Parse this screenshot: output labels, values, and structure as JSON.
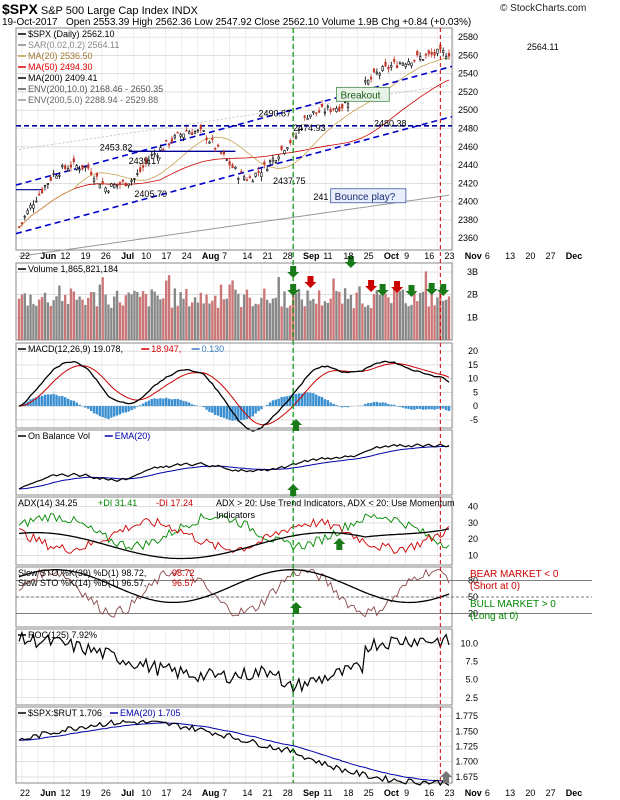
{
  "header": {
    "symbol": "$SPX",
    "name": "S&P 500 Large Cap Index",
    "exchange": "INDX",
    "source": "© StockCharts.com",
    "date": "19-Oct-2017",
    "ohlc": "Open 2553.39  High 2562.36  Low 2547.92  Close 2562.10  Volume 1.9B  Chg +0.84 (+0.03%)"
  },
  "chart_data": [
    {
      "type": "line",
      "panel": "price",
      "legend": [
        {
          "label": "$SPX (Daily) 2562.10",
          "color": "#000000"
        },
        {
          "label": "SAR(0.02,0.2) 2564.11",
          "color": "#888888"
        },
        {
          "label": "MA(20) 2536.50",
          "color": "#c8a050"
        },
        {
          "label": "MA(50) 2494.30",
          "color": "#dd0000"
        },
        {
          "label": "MA(200) 2409.41",
          "color": "#000000"
        },
        {
          "label": "ENV(200,10.0) 2168.46 - 2650.35",
          "color": "#555555"
        },
        {
          "label": "ENV(200,5.0) 2288.94 - 2529.88",
          "color": "#999999"
        }
      ],
      "yticks": [
        2360,
        2380,
        2400,
        2420,
        2440,
        2460,
        2480,
        2500,
        2520,
        2540,
        2560,
        2580
      ],
      "ylim": [
        2347,
        2590
      ],
      "annotations": [
        {
          "text": "2564.11",
          "x": 176,
          "y": 2566
        },
        {
          "text": "2490.87",
          "x": 83,
          "y": 2493
        },
        {
          "text": "2474.93",
          "x": 95,
          "y": 2477
        },
        {
          "text": "2480.38",
          "x": 123,
          "y": 2482
        },
        {
          "text": "2453.82",
          "x": 28,
          "y": 2456
        },
        {
          "text": "2439.17",
          "x": 38,
          "y": 2441
        },
        {
          "text": "2437.75",
          "x": 88,
          "y": 2419
        },
        {
          "text": "241",
          "x": 102,
          "y": 2402
        },
        {
          "text": "2405.70",
          "x": 40,
          "y": 2405
        },
        {
          "text": "Breakout",
          "x": 110,
          "y": 2513,
          "box": "green"
        },
        {
          "text": "Bounce play?",
          "x": 108,
          "y": 2402,
          "box": "blue"
        }
      ]
    },
    {
      "type": "bar",
      "panel": "volume",
      "legend": [
        {
          "label": "Volume 1,865,821,184",
          "color": "#000000"
        }
      ],
      "yticks": [
        1,
        2,
        3
      ],
      "ytick_labels": [
        "1B",
        "2B",
        "3B"
      ],
      "ylim": [
        0,
        3.4
      ]
    },
    {
      "type": "line",
      "panel": "macd",
      "legend": [
        {
          "label": "MACD(12,26,9) 19.078,",
          "color": "#000000"
        },
        {
          "label": "18.947,",
          "color": "#dd0000"
        },
        {
          "label": "0.130",
          "color": "#3a7fc0"
        }
      ],
      "yticks": [
        -5,
        0,
        5,
        10,
        15,
        20
      ],
      "ylim": [
        -8,
        23
      ]
    },
    {
      "type": "line",
      "panel": "obv",
      "legend": [
        {
          "label": "On Balance Vol",
          "color": "#000000"
        },
        {
          "label": "EMA(20)",
          "color": "#0000aa"
        }
      ]
    },
    {
      "type": "line",
      "panel": "adx",
      "legend": [
        {
          "label": "ADX(14) 34.25",
          "color": "#000000"
        },
        {
          "label": "+DI 31.41",
          "color": "#008800"
        },
        {
          "label": "-DI 17.24",
          "color": "#cc0000"
        },
        {
          "label": "ADX > 20: Use Trend Indicators, ADX < 20: Use Momentum",
          "color": "#000000"
        },
        {
          "label": "Indicators",
          "color": "#000000"
        }
      ],
      "yticks": [
        10,
        20,
        30,
        40
      ],
      "ylim": [
        4,
        46
      ]
    },
    {
      "type": "line",
      "panel": "sto",
      "legend": [
        {
          "label": "Slow STO %K(39) %D(1) 98.72,",
          "color": "#000000"
        },
        {
          "label": "98.72",
          "color": "#cc0000"
        },
        {
          "label": "Slow STO %K(14) %D(1) 96.57,",
          "color": "#000000"
        },
        {
          "label": "96.57",
          "color": "#cc0000"
        }
      ],
      "notes": [
        {
          "text": "BEAR MARKET < 0",
          "color": "#cc0000"
        },
        {
          "text": "(Short at 0)",
          "color": "#cc0000"
        },
        {
          "text": "BULL MARKET > 0",
          "color": "#008800"
        },
        {
          "text": "(Long at 0)",
          "color": "#008800"
        }
      ],
      "yticks": [
        20,
        50,
        80
      ],
      "ylim": [
        -5,
        105
      ]
    },
    {
      "type": "line",
      "panel": "roc",
      "legend": [
        {
          "label": "ROC(125) 7.92%",
          "color": "#000000"
        }
      ],
      "yticks": [
        2.5,
        5.0,
        7.5,
        10.0
      ],
      "ytick_labels": [
        "2.5",
        "5.0",
        "7.5",
        "10.0"
      ],
      "ylim": [
        1.5,
        12
      ]
    },
    {
      "type": "line",
      "panel": "ratio",
      "legend": [
        {
          "label": "$SPX:$RUT 1.706",
          "color": "#000000"
        },
        {
          "label": "EMA(20) 1.705",
          "color": "#0000aa"
        }
      ],
      "yticks": [
        1.675,
        1.7,
        1.725,
        1.75,
        1.775
      ],
      "ytick_labels": [
        "1.675",
        "1.700",
        "1.725",
        "1.750",
        "1.775"
      ],
      "ylim": [
        1.665,
        1.79
      ]
    }
  ],
  "xaxis": {
    "labels": [
      "22",
      "Jun",
      "12",
      "19",
      "26",
      "Jul",
      "10",
      "17",
      "24",
      "Aug",
      "7",
      "14",
      "21",
      "28",
      "Sep",
      "11",
      "18",
      "25",
      "Oct",
      "9",
      "16",
      "23",
      "Nov",
      "6",
      "13",
      "20",
      "27",
      "Dec"
    ],
    "bold": [
      "Jun",
      "Jul",
      "Aug",
      "Sep",
      "Oct",
      "Nov",
      "Dec"
    ]
  },
  "colors": {
    "up": "#000000",
    "down": "#c0392b",
    "grid": "#cccccc",
    "green_line": "#009900",
    "red_line": "#cc0000",
    "channel": "#0000cc"
  }
}
